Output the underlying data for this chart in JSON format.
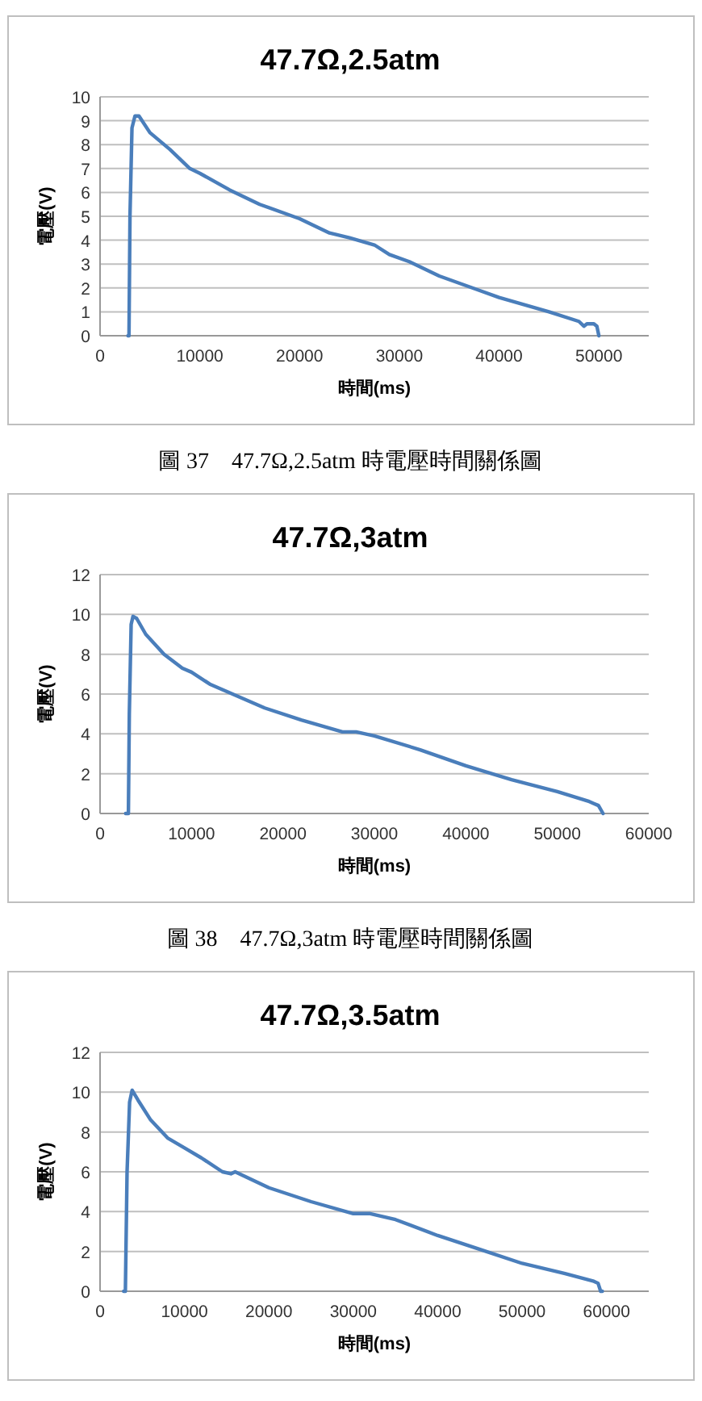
{
  "chart_data": [
    {
      "type": "line",
      "title": "47.7Ω,2.5atm",
      "xlabel": "時間(ms)",
      "ylabel": "電壓(V)",
      "xlim": [
        0,
        55000
      ],
      "xticks": [
        0,
        10000,
        20000,
        30000,
        40000,
        50000
      ],
      "ylim": [
        0,
        10
      ],
      "yticks": [
        0,
        1,
        2,
        3,
        4,
        5,
        6,
        7,
        8,
        9,
        10
      ],
      "grid": "y",
      "marker": "none",
      "line_style": "solid",
      "annotations": [
        "圖 37　47.7Ω,2.5atm 時電壓時間關係圖"
      ],
      "series": [
        {
          "color": "#4a7ebb",
          "x": [
            2800,
            2900,
            3000,
            3200,
            3500,
            3900,
            5000,
            7000,
            9000,
            10000,
            13000,
            16000,
            20000,
            23000,
            25000,
            27500,
            29000,
            31000,
            34000,
            38000,
            40000,
            45000,
            48000,
            48500,
            48800,
            49500,
            49800,
            50000
          ],
          "values": [
            0,
            0,
            5,
            8.7,
            9.2,
            9.2,
            8.5,
            7.8,
            7.0,
            6.8,
            6.1,
            5.5,
            4.9,
            4.3,
            4.1,
            3.8,
            3.4,
            3.1,
            2.5,
            1.9,
            1.6,
            1.0,
            0.6,
            0.4,
            0.5,
            0.5,
            0.4,
            0
          ]
        }
      ]
    },
    {
      "type": "line",
      "title": "47.7Ω,3atm",
      "xlabel": "時間(ms)",
      "ylabel": "電壓(V)",
      "xlim": [
        0,
        60000
      ],
      "xticks": [
        0,
        10000,
        20000,
        30000,
        40000,
        50000,
        60000
      ],
      "ylim": [
        0,
        12
      ],
      "yticks": [
        0,
        2,
        4,
        6,
        8,
        10,
        12
      ],
      "grid": "y",
      "marker": "none",
      "line_style": "solid",
      "annotations": [
        "圖 38　47.7Ω,3atm 時電壓時間關係圖"
      ],
      "series": [
        {
          "color": "#4a7ebb",
          "x": [
            2800,
            3100,
            3200,
            3400,
            3600,
            4000,
            5000,
            7000,
            9000,
            10000,
            12000,
            15000,
            18000,
            22000,
            26500,
            28000,
            30000,
            35000,
            40000,
            45000,
            50000,
            53500,
            54000,
            54500,
            55000
          ],
          "values": [
            0,
            0,
            5,
            9.5,
            9.9,
            9.8,
            9.0,
            8.0,
            7.3,
            7.1,
            6.5,
            5.9,
            5.3,
            4.7,
            4.1,
            4.1,
            3.9,
            3.2,
            2.4,
            1.7,
            1.1,
            0.6,
            0.5,
            0.4,
            0
          ]
        }
      ]
    },
    {
      "type": "line",
      "title": "47.7Ω,3.5atm",
      "xlabel": "時間(ms)",
      "ylabel": "電壓(V)",
      "xlim": [
        0,
        65000
      ],
      "xticks": [
        0,
        10000,
        20000,
        30000,
        40000,
        50000,
        60000
      ],
      "ylim": [
        0,
        12
      ],
      "yticks": [
        0,
        2,
        4,
        6,
        8,
        10,
        12
      ],
      "grid": "y",
      "marker": "none",
      "line_style": "solid",
      "series": [
        {
          "color": "#4a7ebb",
          "x": [
            2800,
            3000,
            3200,
            3500,
            3800,
            4500,
            6000,
            8000,
            10000,
            12000,
            14500,
            15500,
            16000,
            20000,
            25000,
            30000,
            32000,
            35000,
            40000,
            45000,
            50000,
            55000,
            58500,
            59000,
            59300,
            59500
          ],
          "values": [
            0,
            0,
            6,
            9.5,
            10.1,
            9.6,
            8.6,
            7.7,
            7.2,
            6.7,
            6.0,
            5.9,
            6.0,
            5.2,
            4.5,
            3.9,
            3.9,
            3.6,
            2.8,
            2.1,
            1.4,
            0.9,
            0.5,
            0.4,
            0,
            0
          ]
        }
      ]
    }
  ]
}
